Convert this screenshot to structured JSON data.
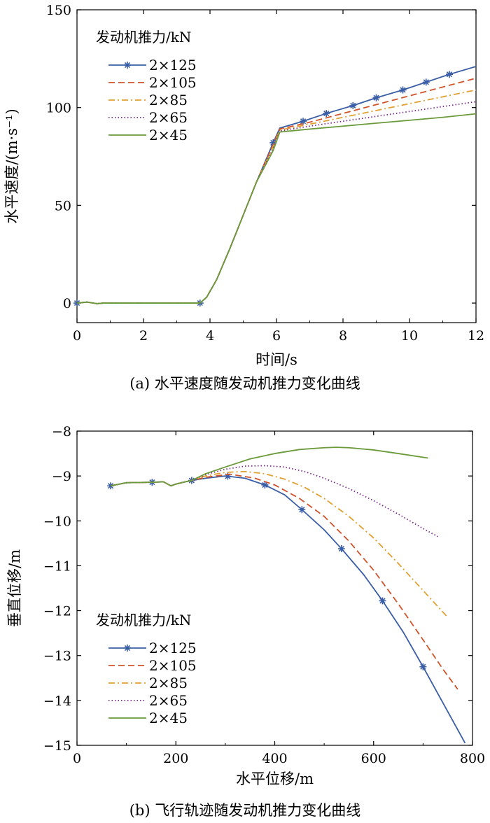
{
  "chart_data": [
    {
      "type": "line",
      "caption": "(a) 水平速度随发动机推力变化曲线",
      "xlabel": "时间/s",
      "ylabel": "水平速度/(m·s⁻¹)",
      "xlim": [
        0,
        12
      ],
      "ylim": [
        -10,
        150
      ],
      "xticks": [
        0,
        2,
        4,
        6,
        8,
        10,
        12
      ],
      "yticks": [
        0,
        50,
        100,
        150
      ],
      "grid": false,
      "legend": {
        "title": "发动机推力/kN",
        "placement": "top-left"
      },
      "series": [
        {
          "name": "2×125",
          "color": "#3a5ea6",
          "dash": "solid",
          "marker": "star",
          "x": [
            0,
            0.3,
            0.6,
            0.8,
            1.5,
            2.5,
            3.7,
            3.9,
            4.2,
            4.6,
            5.0,
            5.4,
            5.9,
            6.1,
            6.8,
            7.5,
            8.3,
            9.0,
            9.8,
            10.5,
            11.2,
            12.0
          ],
          "y": [
            0,
            0.5,
            -0.3,
            0,
            0,
            0,
            0,
            3,
            12,
            28,
            45,
            62,
            82,
            89.5,
            93,
            97,
            101,
            105,
            109,
            113,
            117,
            121
          ],
          "markers_x": [
            0,
            3.7,
            5.9,
            6.8,
            7.5,
            8.3,
            9.0,
            9.8,
            10.5,
            11.2
          ]
        },
        {
          "name": "2×105",
          "color": "#d0532a",
          "dash": "dashed",
          "marker": "none",
          "x": [
            0,
            0.3,
            0.6,
            0.8,
            1.5,
            2.5,
            3.7,
            3.9,
            4.2,
            4.6,
            5.0,
            5.4,
            5.9,
            6.1,
            7.0,
            8.0,
            9.0,
            10.0,
            11.0,
            12.0
          ],
          "y": [
            0,
            0.5,
            -0.3,
            0,
            0,
            0,
            0,
            3,
            12,
            28,
            45,
            62,
            81,
            89,
            92.5,
            97,
            101.5,
            106,
            110.5,
            115
          ]
        },
        {
          "name": "2×85",
          "color": "#e0a030",
          "dash": "dashdot",
          "marker": "none",
          "x": [
            0,
            0.3,
            0.6,
            0.8,
            1.5,
            2.5,
            3.7,
            3.9,
            4.2,
            4.6,
            5.0,
            5.4,
            5.9,
            6.1,
            7.0,
            8.0,
            9.0,
            10.0,
            11.0,
            12.0
          ],
          "y": [
            0,
            0.5,
            -0.3,
            0,
            0,
            0,
            0,
            3,
            12,
            28,
            45,
            62,
            80,
            88.5,
            91.5,
            95,
            98.5,
            102,
            105.5,
            109
          ]
        },
        {
          "name": "2×65",
          "color": "#7a2a8c",
          "dash": "dotted",
          "marker": "none",
          "x": [
            0,
            0.3,
            0.6,
            0.8,
            1.5,
            2.5,
            3.7,
            3.9,
            4.2,
            4.6,
            5.0,
            5.4,
            5.9,
            6.1,
            7.0,
            8.0,
            9.0,
            10.0,
            11.0,
            12.0
          ],
          "y": [
            0,
            0.5,
            -0.3,
            0,
            0,
            0,
            0,
            3,
            12,
            28,
            45,
            62,
            79,
            88,
            90.5,
            93,
            95.5,
            98,
            100.5,
            103
          ]
        },
        {
          "name": "2×45",
          "color": "#6a9a3a",
          "dash": "solid",
          "marker": "none",
          "x": [
            0,
            0.3,
            0.6,
            0.8,
            1.5,
            2.5,
            3.7,
            3.9,
            4.2,
            4.6,
            5.0,
            5.4,
            5.9,
            6.1,
            7.0,
            8.0,
            9.0,
            10.0,
            11.0,
            12.0
          ],
          "y": [
            0,
            0.5,
            -0.3,
            0,
            0,
            0,
            0,
            3,
            12,
            28,
            45,
            62,
            78,
            87.5,
            89,
            90.5,
            92,
            93.5,
            95,
            96.8
          ]
        }
      ]
    },
    {
      "type": "line",
      "caption": "(b) 飞行轨迹随发动机推力变化曲线",
      "xlabel": "水平位移/m",
      "ylabel": "垂直位移/m",
      "xlim": [
        0,
        800
      ],
      "ylim": [
        -15,
        -8
      ],
      "xticks": [
        0,
        200,
        400,
        600,
        800
      ],
      "yticks": [
        -8,
        -9,
        -10,
        -11,
        -12,
        -13,
        -14,
        -15
      ],
      "grid": false,
      "legend": {
        "title": "发动机推力/kN",
        "placement": "bottom-left"
      },
      "series": [
        {
          "name": "2×125",
          "color": "#3a5ea6",
          "dash": "solid",
          "marker": "star",
          "x": [
            68,
            100,
            150,
            175,
            190,
            200,
            215,
            232,
            260,
            300,
            340,
            380,
            420,
            455,
            500,
            535,
            580,
            618,
            660,
            700,
            740,
            785
          ],
          "y": [
            -9.22,
            -9.15,
            -9.14,
            -9.13,
            -9.22,
            -9.18,
            -9.14,
            -9.1,
            -9.05,
            -9.0,
            -9.05,
            -9.2,
            -9.42,
            -9.75,
            -10.2,
            -10.62,
            -11.2,
            -11.78,
            -12.48,
            -13.25,
            -14.05,
            -14.95
          ],
          "markers_x": [
            68,
            152,
            232,
            305,
            380,
            455,
            535,
            618,
            700
          ]
        },
        {
          "name": "2×105",
          "color": "#d0532a",
          "dash": "dashed",
          "marker": "none",
          "x": [
            68,
            100,
            150,
            175,
            190,
            200,
            215,
            232,
            260,
            310,
            360,
            400,
            450,
            500,
            550,
            600,
            650,
            700,
            740,
            770
          ],
          "y": [
            -9.22,
            -9.15,
            -9.14,
            -9.13,
            -9.22,
            -9.18,
            -9.14,
            -9.1,
            -9.03,
            -8.96,
            -9.05,
            -9.2,
            -9.5,
            -9.9,
            -10.45,
            -11.1,
            -11.85,
            -12.65,
            -13.3,
            -13.75
          ]
        },
        {
          "name": "2×85",
          "color": "#e0a030",
          "dash": "dashdot",
          "marker": "none",
          "x": [
            68,
            100,
            150,
            175,
            190,
            200,
            215,
            232,
            260,
            300,
            340,
            380,
            420,
            460,
            500,
            550,
            600,
            650,
            700,
            750
          ],
          "y": [
            -9.22,
            -9.15,
            -9.14,
            -9.13,
            -9.22,
            -9.18,
            -9.14,
            -9.1,
            -9.0,
            -8.92,
            -8.9,
            -8.95,
            -9.07,
            -9.25,
            -9.5,
            -9.9,
            -10.38,
            -10.95,
            -11.55,
            -12.15
          ]
        },
        {
          "name": "2×65",
          "color": "#7a2a8c",
          "dash": "dotted",
          "marker": "none",
          "x": [
            68,
            100,
            150,
            175,
            190,
            200,
            215,
            232,
            260,
            300,
            340,
            380,
            420,
            460,
            500,
            550,
            600,
            650,
            700,
            730
          ],
          "y": [
            -9.22,
            -9.15,
            -9.14,
            -9.13,
            -9.22,
            -9.18,
            -9.14,
            -9.1,
            -8.97,
            -8.85,
            -8.78,
            -8.77,
            -8.8,
            -8.9,
            -9.05,
            -9.28,
            -9.55,
            -9.85,
            -10.17,
            -10.35
          ]
        },
        {
          "name": "2×45",
          "color": "#6a9a3a",
          "dash": "solid",
          "marker": "none",
          "x": [
            68,
            100,
            150,
            175,
            190,
            200,
            215,
            232,
            260,
            300,
            350,
            400,
            450,
            500,
            525,
            550,
            600,
            650,
            710
          ],
          "y": [
            -9.22,
            -9.15,
            -9.14,
            -9.13,
            -9.22,
            -9.18,
            -9.14,
            -9.1,
            -8.95,
            -8.8,
            -8.62,
            -8.5,
            -8.41,
            -8.37,
            -8.36,
            -8.37,
            -8.42,
            -8.5,
            -8.6
          ]
        }
      ]
    }
  ]
}
